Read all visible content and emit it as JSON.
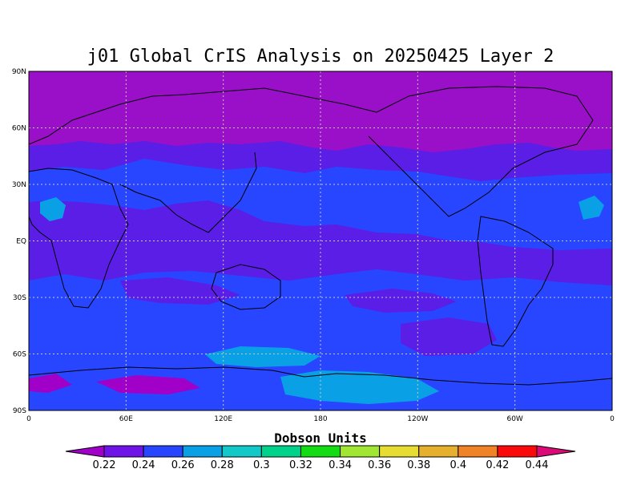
{
  "title": "j01 Global CrIS Analysis on 20250425 Layer 2",
  "map": {
    "lat_labels": [
      "90N",
      "60N",
      "30N",
      "EQ",
      "30S",
      "60S",
      "90S"
    ],
    "lon_labels": [
      "0",
      "60E",
      "120E",
      "180",
      "120W",
      "60W",
      "0"
    ],
    "background_color": "#5a1ee6",
    "polar_color": "#9a10c8",
    "coast_color": "#000000",
    "grid_lines": true
  },
  "colorbar": {
    "unit_label": "Dobson Units",
    "levels": [
      "0.22",
      "0.24",
      "0.26",
      "0.28",
      "0.3",
      "0.32",
      "0.34",
      "0.36",
      "0.38",
      "0.4",
      "0.42",
      "0.44"
    ],
    "colors": [
      "#a000c8",
      "#6e14e6",
      "#2846ff",
      "#0aa0e6",
      "#14c8c8",
      "#00d28c",
      "#14dc14",
      "#a0e632",
      "#e6dc32",
      "#e6af2d",
      "#f08228",
      "#fa0a0a",
      "#dc0a78"
    ]
  }
}
